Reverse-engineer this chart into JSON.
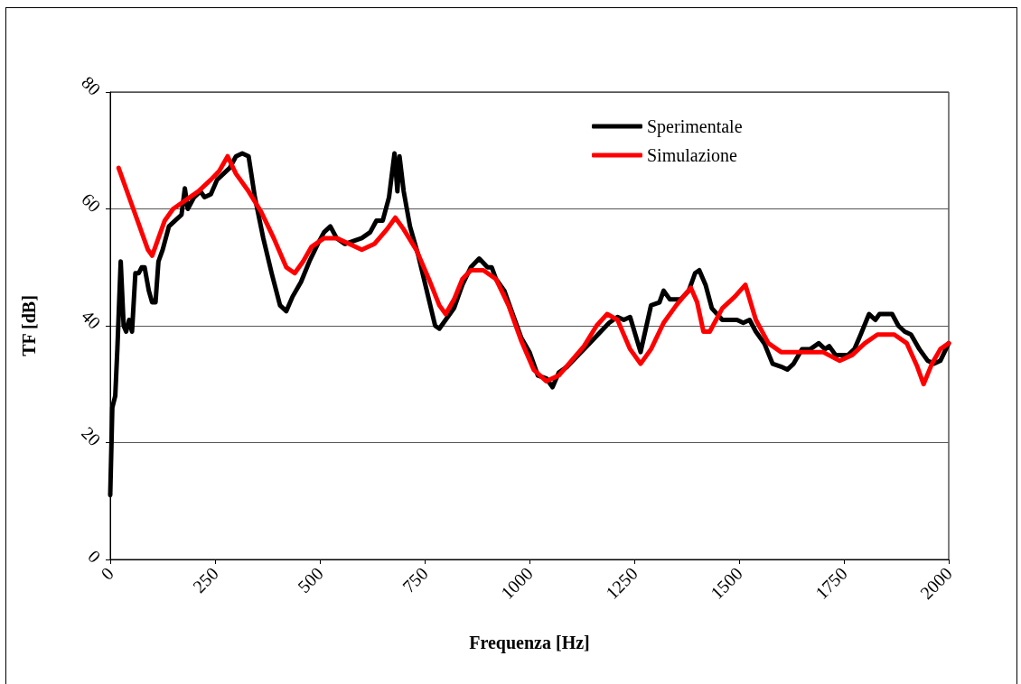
{
  "chart_data": {
    "type": "line",
    "xlabel": "Frequenza [Hz]",
    "ylabel": "TF [dB]",
    "xlim": [
      0,
      2000
    ],
    "xticks": [
      0,
      250,
      500,
      750,
      1000,
      1250,
      1500,
      1750,
      2000
    ],
    "ylim": [
      0,
      80
    ],
    "yticks": [
      0,
      20,
      40,
      60,
      80
    ],
    "grid": "y",
    "legend": "top right",
    "marker": "none",
    "line_style": "solid",
    "series": [
      {
        "name": "Sperimentale",
        "color": "#000000",
        "x": [
          0,
          5,
          12,
          17,
          25,
          32,
          38,
          45,
          52,
          60,
          68,
          75,
          82,
          92,
          100,
          108,
          115,
          125,
          140,
          155,
          170,
          178,
          185,
          200,
          215,
          225,
          240,
          255,
          270,
          285,
          300,
          315,
          330,
          345,
          365,
          385,
          405,
          420,
          435,
          455,
          475,
          495,
          510,
          525,
          540,
          560,
          580,
          600,
          620,
          635,
          650,
          665,
          678,
          685,
          690,
          700,
          715,
          735,
          755,
          775,
          785,
          800,
          820,
          840,
          860,
          880,
          900,
          910,
          920,
          940,
          960,
          980,
          1000,
          1020,
          1040,
          1055,
          1070,
          1090,
          1110,
          1130,
          1150,
          1170,
          1190,
          1210,
          1225,
          1240,
          1265,
          1290,
          1310,
          1320,
          1335,
          1360,
          1380,
          1395,
          1405,
          1420,
          1435,
          1460,
          1480,
          1495,
          1510,
          1525,
          1540,
          1560,
          1580,
          1600,
          1615,
          1630,
          1650,
          1670,
          1690,
          1705,
          1715,
          1730,
          1745,
          1760,
          1775,
          1790,
          1810,
          1825,
          1835,
          1850,
          1865,
          1880,
          1895,
          1910,
          1930,
          1950,
          1965,
          1980,
          2000
        ],
        "values": [
          11,
          26,
          28,
          36,
          51,
          40,
          39,
          41,
          39,
          49,
          49,
          50,
          50,
          46,
          44,
          44,
          51,
          53,
          57,
          58,
          59,
          63.5,
          60,
          62,
          63,
          62,
          62.5,
          65,
          66,
          67,
          69,
          69.5,
          69,
          62,
          55,
          49,
          43.5,
          42.5,
          45,
          47.5,
          51,
          54,
          56,
          57,
          55,
          54,
          54.5,
          55,
          56,
          58,
          58,
          62,
          69.5,
          63,
          69,
          63,
          57,
          52,
          46,
          40,
          39.5,
          41,
          43,
          47,
          50,
          51.5,
          50,
          50,
          48,
          46,
          42,
          38,
          35.5,
          31.5,
          31,
          29.5,
          32,
          33,
          34.5,
          36,
          37.5,
          39,
          40.5,
          41.5,
          41,
          41.5,
          35.5,
          43.5,
          44,
          46,
          44.5,
          44.5,
          46,
          49,
          49.5,
          47,
          43,
          41,
          41,
          41,
          40.5,
          41,
          39,
          37,
          33.5,
          33,
          32.5,
          33.5,
          36,
          36,
          37,
          36,
          36.5,
          35,
          35,
          35,
          36,
          38.5,
          42,
          41,
          42,
          42,
          42,
          40,
          39,
          38.5,
          36,
          34,
          33.5,
          34,
          37
        ]
      },
      {
        "name": "Simulazione",
        "color": "#ff0000",
        "x": [
          20,
          50,
          70,
          90,
          100,
          115,
          130,
          150,
          180,
          210,
          240,
          260,
          280,
          300,
          330,
          360,
          390,
          420,
          440,
          460,
          480,
          510,
          540,
          570,
          600,
          630,
          660,
          680,
          700,
          730,
          760,
          785,
          800,
          820,
          840,
          860,
          890,
          920,
          950,
          980,
          1010,
          1040,
          1070,
          1100,
          1130,
          1160,
          1185,
          1210,
          1240,
          1265,
          1290,
          1320,
          1350,
          1385,
          1400,
          1415,
          1430,
          1460,
          1490,
          1515,
          1540,
          1570,
          1600,
          1650,
          1700,
          1740,
          1770,
          1800,
          1830,
          1870,
          1900,
          1925,
          1940,
          1960,
          1980,
          2000
        ],
        "values": [
          67,
          61,
          57,
          53,
          52,
          55,
          58,
          60,
          61.5,
          63,
          65,
          66.5,
          69,
          66,
          63,
          59.5,
          55,
          50,
          49,
          51,
          53.5,
          55,
          55,
          54,
          53,
          54,
          56.5,
          58.5,
          56.5,
          53,
          48,
          43.5,
          42,
          44.5,
          48,
          49.5,
          49.5,
          48,
          43.5,
          37.5,
          32.5,
          30.5,
          31.5,
          34,
          36.5,
          40,
          42,
          41,
          36,
          33.5,
          36,
          40.5,
          43.5,
          46.5,
          44,
          39,
          39,
          43,
          45,
          47,
          41,
          37,
          35.5,
          35.5,
          35.5,
          34,
          35,
          37,
          38.5,
          38.5,
          37,
          33,
          30,
          33.5,
          36,
          37
        ]
      }
    ]
  }
}
